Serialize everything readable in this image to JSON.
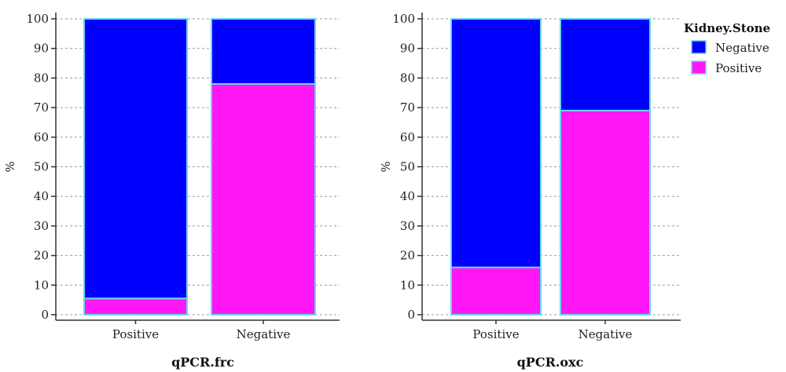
{
  "legend": {
    "title": "Kidney.Stone",
    "entries": [
      {
        "label": "Negative",
        "color": "#0000ff"
      },
      {
        "label": "Positive",
        "color": "#ff17f6"
      }
    ]
  },
  "colors": {
    "negative": "#0000ff",
    "positive": "#ff17f6",
    "bar_outline": "#6ad6ee",
    "grid": "#8fa0a6",
    "axis": "#333333"
  },
  "chart_data": [
    {
      "type": "bar",
      "stacked": true,
      "title": "",
      "xlabel": "qPCR.frc",
      "ylabel": "%",
      "ylim": [
        0,
        100
      ],
      "yticks": [
        0,
        10,
        20,
        30,
        40,
        50,
        60,
        70,
        80,
        90,
        100
      ],
      "categories": [
        "Positive",
        "Negative"
      ],
      "series": [
        {
          "name": "Positive",
          "values": [
            5.5,
            78
          ]
        },
        {
          "name": "Negative",
          "values": [
            94.5,
            22
          ]
        }
      ],
      "grid": "horizontal dashed",
      "legend": "right"
    },
    {
      "type": "bar",
      "stacked": true,
      "title": "",
      "xlabel": "qPCR.oxc",
      "ylabel": "%",
      "ylim": [
        0,
        100
      ],
      "yticks": [
        0,
        10,
        20,
        30,
        40,
        50,
        60,
        70,
        80,
        90,
        100
      ],
      "categories": [
        "Positive",
        "Negative"
      ],
      "series": [
        {
          "name": "Positive",
          "values": [
            16,
            69
          ]
        },
        {
          "name": "Negative",
          "values": [
            84,
            31
          ]
        }
      ],
      "grid": "horizontal dashed",
      "legend": "right"
    }
  ]
}
